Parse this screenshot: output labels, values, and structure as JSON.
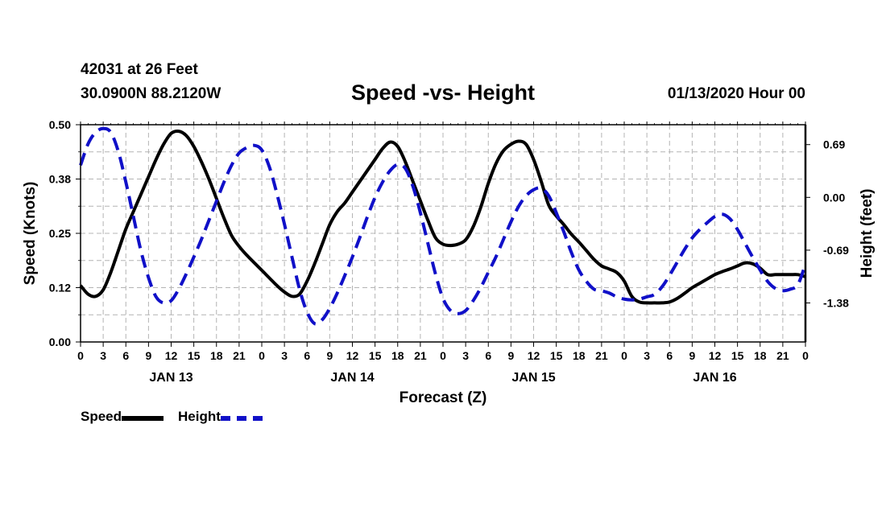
{
  "header": {
    "station": "42031 at 26 Feet",
    "latlon": "30.0900N 88.2120W",
    "title": "Speed -vs- Height",
    "datetime": "01/13/2020 Hour 00"
  },
  "legend": {
    "speed_label": "Speed",
    "height_label": "Height"
  },
  "colors": {
    "speed": "#000000",
    "height": "#1010c8",
    "grid": "#b4b4b4"
  },
  "chart_data": {
    "type": "line",
    "title": "Speed -vs- Height",
    "xlabel": "Forecast (Z)",
    "ylabel_left": "Speed (Knots)",
    "ylabel_right": "Height (feet)",
    "x_range": [
      0,
      96
    ],
    "x_tick_step": 3,
    "x_tick_labels": [
      "0",
      "3",
      "6",
      "9",
      "12",
      "15",
      "18",
      "21",
      "0",
      "3",
      "6",
      "9",
      "12",
      "15",
      "18",
      "21",
      "0",
      "3",
      "6",
      "9",
      "12",
      "15",
      "18",
      "21",
      "0",
      "3",
      "6",
      "9",
      "12",
      "15",
      "18",
      "21",
      "0"
    ],
    "day_labels": [
      {
        "hour": 12,
        "label": "JAN 13"
      },
      {
        "hour": 36,
        "label": "JAN 14"
      },
      {
        "hour": 60,
        "label": "JAN 15"
      },
      {
        "hour": 84,
        "label": "JAN 16"
      }
    ],
    "ylim_left": [
      0,
      0.5
    ],
    "y_ticks_left": [
      0.0,
      0.125,
      0.25,
      0.375,
      0.5
    ],
    "y_tick_labels_left": [
      "0.00",
      "0.12",
      "0.25",
      "0.38",
      "0.50"
    ],
    "ylim_right": [
      -1.89,
      0.95
    ],
    "y_ticks_right": [
      0.69,
      0.0,
      -0.69,
      -1.38
    ],
    "y_tick_labels_right": [
      "0.69",
      "0.00",
      "-0.69",
      "-1.38"
    ],
    "grid": true,
    "series": [
      {
        "name": "Speed",
        "axis": "left",
        "style": "solid",
        "x": [
          0,
          1,
          2,
          3,
          4,
          5,
          6,
          7,
          8,
          9,
          10,
          11,
          12,
          13,
          14,
          15,
          16,
          17,
          18,
          19,
          20,
          21,
          22,
          24,
          26,
          27,
          28,
          29,
          30,
          31,
          32,
          33,
          34,
          35,
          36,
          37,
          38,
          39,
          40,
          41,
          42,
          43,
          44,
          45,
          46,
          47,
          48,
          49,
          50,
          51,
          52,
          53,
          54,
          55,
          56,
          57,
          58,
          59,
          60,
          61,
          62,
          63,
          64,
          65,
          66,
          67,
          68,
          69,
          70,
          71,
          72,
          73,
          74,
          75,
          76,
          77,
          78,
          79,
          80,
          81,
          82,
          83,
          84,
          85,
          86,
          87,
          88,
          89,
          90,
          91,
          92,
          93,
          94,
          95,
          96
        ],
        "values": [
          0.13,
          0.11,
          0.105,
          0.12,
          0.16,
          0.21,
          0.26,
          0.3,
          0.34,
          0.38,
          0.42,
          0.455,
          0.48,
          0.485,
          0.475,
          0.45,
          0.415,
          0.375,
          0.33,
          0.285,
          0.245,
          0.22,
          0.2,
          0.165,
          0.13,
          0.115,
          0.105,
          0.11,
          0.14,
          0.18,
          0.225,
          0.27,
          0.3,
          0.32,
          0.345,
          0.37,
          0.395,
          0.42,
          0.445,
          0.46,
          0.45,
          0.415,
          0.37,
          0.325,
          0.28,
          0.24,
          0.225,
          0.222,
          0.225,
          0.235,
          0.265,
          0.31,
          0.365,
          0.41,
          0.44,
          0.455,
          0.462,
          0.455,
          0.42,
          0.37,
          0.315,
          0.29,
          0.27,
          0.248,
          0.23,
          0.21,
          0.19,
          0.175,
          0.168,
          0.16,
          0.14,
          0.105,
          0.092,
          0.09,
          0.09,
          0.09,
          0.092,
          0.1,
          0.112,
          0.125,
          0.135,
          0.145,
          0.155,
          0.162,
          0.168,
          0.175,
          0.182,
          0.18,
          0.17,
          0.155,
          0.155,
          0.155,
          0.155,
          0.155,
          0.15
        ]
      },
      {
        "name": "Height",
        "axis": "right",
        "style": "dashed",
        "x": [
          0,
          1,
          2,
          3,
          4,
          5,
          6,
          7,
          8,
          9,
          10,
          11,
          12,
          13,
          14,
          15,
          16,
          17,
          18,
          19,
          20,
          21,
          22,
          23,
          24,
          25,
          26,
          27,
          28,
          29,
          30,
          31,
          32,
          33,
          34,
          35,
          36,
          37,
          38,
          39,
          40,
          41,
          42,
          43,
          44,
          45,
          46,
          47,
          48,
          49,
          50,
          51,
          52,
          53,
          54,
          55,
          56,
          57,
          58,
          59,
          60,
          61,
          62,
          63,
          64,
          65,
          66,
          67,
          68,
          69,
          70,
          71,
          72,
          73,
          74,
          75,
          76,
          77,
          78,
          79,
          80,
          81,
          82,
          83,
          84,
          85,
          86,
          87,
          88,
          89,
          90,
          91,
          92,
          93,
          94,
          95,
          96
        ],
        "values": [
          0.42,
          0.7,
          0.85,
          0.9,
          0.85,
          0.6,
          0.2,
          -0.25,
          -0.7,
          -1.05,
          -1.3,
          -1.38,
          -1.35,
          -1.2,
          -1.0,
          -0.78,
          -0.55,
          -0.3,
          -0.05,
          0.2,
          0.42,
          0.58,
          0.65,
          0.68,
          0.62,
          0.4,
          0.05,
          -0.35,
          -0.78,
          -1.2,
          -1.5,
          -1.65,
          -1.6,
          -1.45,
          -1.25,
          -1.02,
          -0.78,
          -0.52,
          -0.25,
          0.0,
          0.2,
          0.35,
          0.43,
          0.38,
          0.15,
          -0.2,
          -0.6,
          -1.0,
          -1.32,
          -1.48,
          -1.52,
          -1.48,
          -1.35,
          -1.18,
          -0.98,
          -0.78,
          -0.55,
          -0.32,
          -0.12,
          0.02,
          0.1,
          0.12,
          0.02,
          -0.2,
          -0.45,
          -0.72,
          -0.95,
          -1.1,
          -1.2,
          -1.22,
          -1.25,
          -1.3,
          -1.33,
          -1.34,
          -1.33,
          -1.3,
          -1.27,
          -1.17,
          -1.02,
          -0.85,
          -0.68,
          -0.53,
          -0.42,
          -0.33,
          -0.25,
          -0.22,
          -0.28,
          -0.42,
          -0.6,
          -0.78,
          -0.95,
          -1.1,
          -1.19,
          -1.22,
          -1.2,
          -1.14,
          -0.87
        ]
      }
    ]
  }
}
